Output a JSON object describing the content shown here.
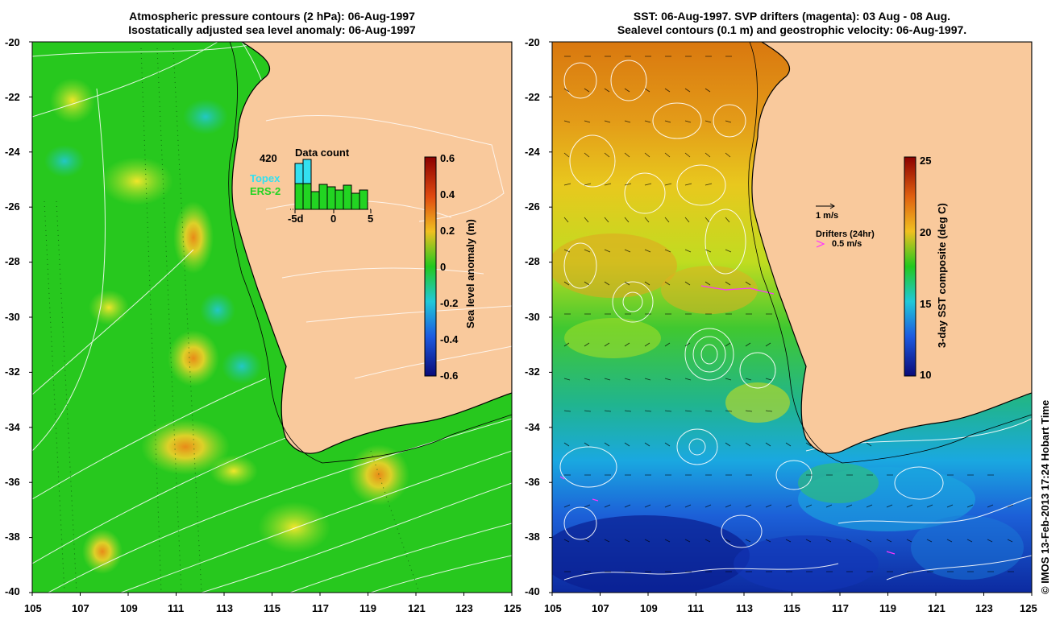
{
  "left_panel": {
    "title_line1": "Atmospheric pressure contours (2 hPa): 06-Aug-1997",
    "title_line2": "Isostatically adjusted sea level anomaly: 06-Aug-1997",
    "colorbar_label": "Sea level anomaly (m)",
    "colorbar_ticks": [
      "0.6",
      "0.4",
      "0.2",
      "0",
      "-0.2",
      "-0.4",
      "-0.6"
    ],
    "inset": {
      "title": "Data count",
      "count_label": "420",
      "series": [
        {
          "name": "Topex",
          "color": "#33e0f0"
        },
        {
          "name": "ERS-2",
          "color": "#22d422"
        }
      ],
      "x_ticks": [
        "-5d",
        "0",
        "5"
      ]
    }
  },
  "right_panel": {
    "title_line1": "SST: 06-Aug-1997. SVP drifters (magenta): 03 Aug - 08 Aug.",
    "title_line2": "Sealevel contours (0.1 m) and geostrophic velocity: 06-Aug-1997.",
    "colorbar_label": "3-day SST composite (deg C)",
    "colorbar_ticks": [
      "25",
      "20",
      "15",
      "10"
    ],
    "velocity_key": "1 m/s",
    "drifter_key_title": "Drifters (24hr)",
    "drifter_key_value": "0.5 m/s"
  },
  "axes": {
    "lat_ticks": [
      "-20",
      "-22",
      "-24",
      "-26",
      "-28",
      "-30",
      "-32",
      "-34",
      "-36",
      "-38",
      "-40"
    ],
    "lon_ticks": [
      "105",
      "107",
      "109",
      "111",
      "113",
      "115",
      "117",
      "119",
      "121",
      "123",
      "125"
    ]
  },
  "credit": "© IMOS 13-Feb-2013 17:24 Hobart Time",
  "colors": {
    "land": "#f9c99c",
    "ocean_green": "#27c81e",
    "sst_warm": "#d97a12",
    "sst_cold": "#1538c8",
    "drifter": "#ff33ff"
  }
}
